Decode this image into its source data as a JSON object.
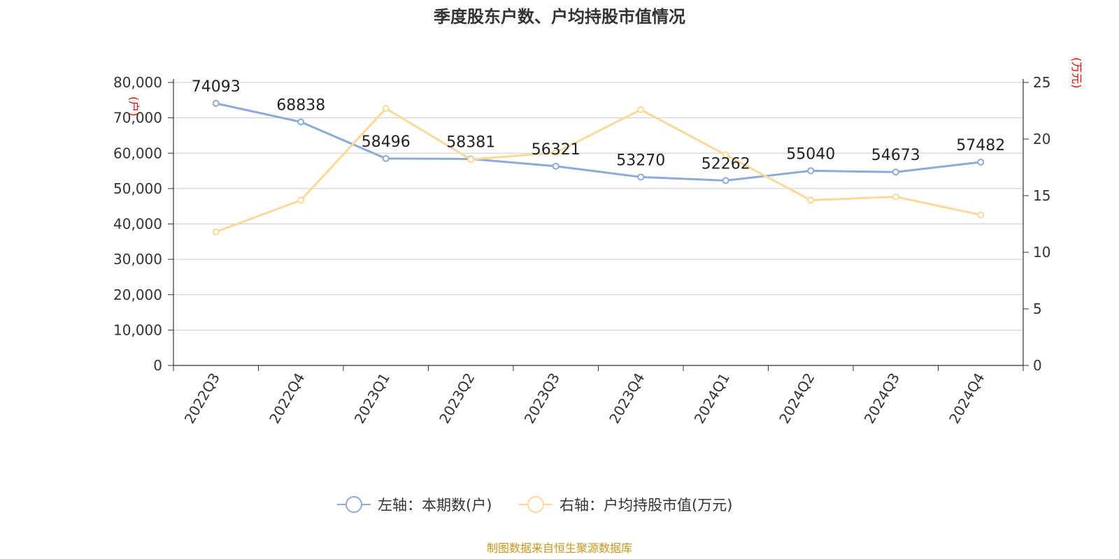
{
  "chart_data": {
    "type": "line",
    "title": "季度股东户数、户均持股市值情况",
    "categories": [
      "2022Q3",
      "2022Q4",
      "2023Q1",
      "2023Q2",
      "2023Q3",
      "2023Q4",
      "2024Q1",
      "2024Q2",
      "2024Q3",
      "2024Q4"
    ],
    "left_axis": {
      "unit": "(户)",
      "ylim": [
        0,
        80000
      ],
      "ticks": [
        "0",
        "10,000",
        "20,000",
        "30,000",
        "40,000",
        "50,000",
        "60,000",
        "70,000",
        "80,000"
      ]
    },
    "right_axis": {
      "unit": "(万元)",
      "ylim": [
        0,
        25
      ],
      "ticks": [
        "0",
        "5",
        "10",
        "15",
        "20",
        "25"
      ]
    },
    "series": [
      {
        "name": "左轴：本期数(户)",
        "axis": "left",
        "color": "#8eaadb",
        "values": [
          74093,
          68838,
          58496,
          58381,
          56321,
          53270,
          52262,
          55040,
          54673,
          57482
        ],
        "labels": [
          "74093",
          "68838",
          "58496",
          "58381",
          "56321",
          "53270",
          "52262",
          "55040",
          "54673",
          "57482"
        ]
      },
      {
        "name": "右轴：户均持股市值(万元)",
        "axis": "right",
        "color": "#fdd89a",
        "values": [
          11.8,
          14.6,
          22.7,
          18.2,
          18.8,
          22.6,
          18.6,
          14.6,
          14.9,
          13.3
        ]
      }
    ],
    "grid": true,
    "legend": "bottom",
    "source": "制图数据来自恒生聚源数据库"
  }
}
